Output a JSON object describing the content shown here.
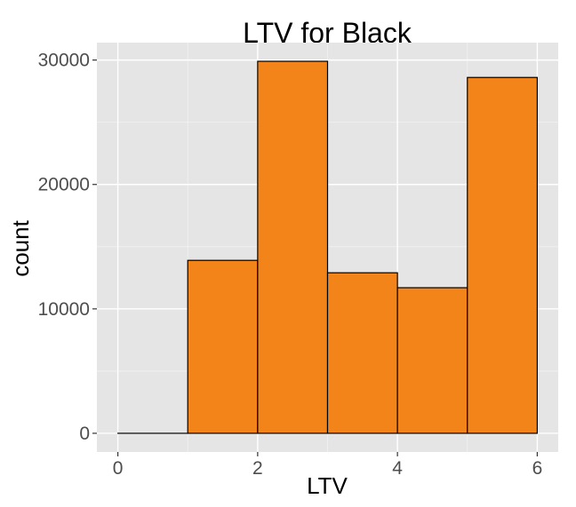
{
  "chart_data": {
    "type": "histogram",
    "title": "LTV for Black",
    "xlabel": "LTV",
    "ylabel": "count",
    "bin_edges": [
      0,
      1,
      2,
      3,
      4,
      5,
      6
    ],
    "values": [
      0,
      13900,
      29900,
      12900,
      11700,
      28600
    ],
    "xlim": [
      -0.3,
      6.3
    ],
    "ylim": [
      -1500,
      31400
    ],
    "x_ticks": [
      0,
      2,
      4,
      6
    ],
    "y_ticks": [
      0,
      10000,
      20000,
      30000
    ],
    "x_minor_ticks": [
      1,
      3,
      5
    ],
    "y_minor_ticks": [
      5000,
      15000,
      25000
    ],
    "grid": true,
    "bar_fill": "#f28419",
    "bar_stroke": "#000000",
    "panel_background": "#e5e5e5",
    "grid_color": "#ffffff"
  }
}
